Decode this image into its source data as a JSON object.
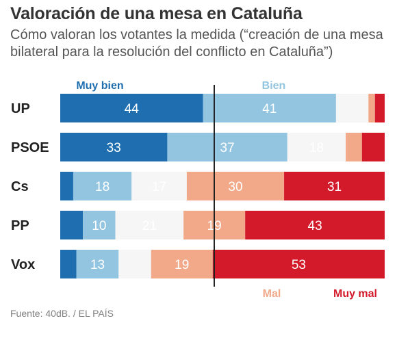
{
  "header": {
    "title": "Valoración de una mesa en Cataluña",
    "subtitle": "Cómo valoran los votantes la medida (“creación de una mesa bilateral para la resolución del conflicto en Cataluña”)"
  },
  "footer": {
    "source": "Fuente: 40dB. / EL PAÍS"
  },
  "chart_data": {
    "type": "bar",
    "orientation": "horizontal",
    "stacked": true,
    "categories": [
      "UP",
      "PSOE",
      "Cs",
      "PP",
      "Vox"
    ],
    "series": [
      {
        "name": "Muy bien",
        "color": "#1f6fb0",
        "values": [
          44,
          33,
          4,
          7,
          5
        ]
      },
      {
        "name": "Bien",
        "color": "#93c5e0",
        "values": [
          41,
          37,
          18,
          10,
          13
        ]
      },
      {
        "name": "",
        "color": "#f6f6f6",
        "values": [
          10,
          18,
          17,
          21,
          10
        ]
      },
      {
        "name": "Mal",
        "color": "#f2a98a",
        "values": [
          2,
          5,
          30,
          19,
          19
        ]
      },
      {
        "name": "Muy mal",
        "color": "#d21a2a",
        "values": [
          3,
          7,
          31,
          43,
          53
        ]
      }
    ],
    "data_labels": [
      [
        "44",
        "41",
        "",
        "",
        ""
      ],
      [
        "33",
        "37",
        "18",
        "",
        ""
      ],
      [
        "",
        "18",
        "17",
        "30",
        "31"
      ],
      [
        "",
        "10",
        "21",
        "19",
        "43"
      ],
      [
        "",
        "13",
        "",
        "19",
        "53"
      ]
    ],
    "legend": [
      {
        "label": "Muy bien",
        "color": "#1f6fb0",
        "position": "top"
      },
      {
        "label": "Bien",
        "color": "#93c5e0",
        "position": "top"
      },
      {
        "label": "Mal",
        "color": "#f2a98a",
        "position": "bottom"
      },
      {
        "label": "Muy mal",
        "color": "#d21a2a",
        "position": "bottom"
      }
    ],
    "reference_line": "center",
    "grid": false
  }
}
